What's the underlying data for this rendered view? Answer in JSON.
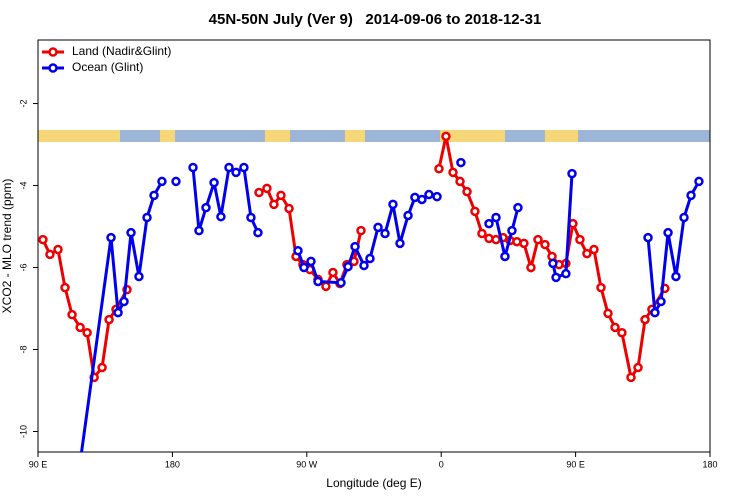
{
  "chart_data": {
    "type": "line",
    "title": "45N-50N July (Ver 9)   2014-09-06 to 2018-12-31",
    "xlabel": "Longitude (deg E)",
    "ylabel": "XCO2 - MLO trend (ppm)",
    "xlim": [
      90,
      540
    ],
    "ylim": [
      -10.5,
      -0.45
    ],
    "xticks": [
      {
        "value": 90,
        "label": "90 E"
      },
      180,
      {
        "value": 270,
        "label": "90 W"
      },
      {
        "value": 360,
        "label": "0"
      },
      {
        "value": 450,
        "label": "90 E"
      },
      {
        "value": 540,
        "label": "180"
      }
    ],
    "yticks": [
      -10,
      -8,
      -6,
      -4,
      -2
    ],
    "legend": "top-left",
    "series": [
      {
        "name": "Land (Nadir&Glint)",
        "color": "#ee0000",
        "x": [
          93.3,
          98.0,
          103.4,
          108.1,
          112.8,
          118.2,
          122.9,
          127.6,
          132.9,
          137.6,
          142.2,
          149.6,
          null,
          238.0,
          243.3,
          248.0,
          252.7,
          258.1,
          262.8,
          267.4,
          272.1,
          277.5,
          282.8,
          287.5,
          292.2,
          296.9,
          301.6,
          306.3,
          null,
          358.5,
          363.2,
          367.9,
          372.6,
          377.3,
          382.6,
          387.3,
          392.0,
          396.7,
          401.4,
          406.1,
          410.7,
          415.4,
          420.1,
          424.8,
          429.5,
          434.2,
          438.9,
          443.5,
          448.2,
          452.9,
          457.6,
          462.3,
          467.0,
          471.7,
          476.4,
          481.0,
          487.1,
          491.8,
          496.5,
          501.1,
          509.8
        ],
        "values": [
          -5.32,
          -5.68,
          -5.56,
          -6.49,
          -7.15,
          -7.46,
          -7.59,
          -8.68,
          -8.44,
          -7.27,
          -7.02,
          -6.54,
          null,
          -4.17,
          -4.07,
          -4.46,
          -4.24,
          -4.56,
          -5.73,
          -5.93,
          -6.05,
          -6.29,
          -6.46,
          -6.12,
          -6.39,
          -5.93,
          -5.85,
          -5.1,
          null,
          -3.59,
          -2.8,
          -3.68,
          -3.9,
          -4.15,
          -4.63,
          -5.17,
          -5.29,
          -5.32,
          -5.27,
          -5.34,
          -5.37,
          -5.41,
          -6.0,
          -5.32,
          -5.44,
          -5.73,
          -5.93,
          -5.9,
          -4.93,
          -5.32,
          -5.66,
          -5.56,
          -6.49,
          -7.12,
          -7.46,
          -7.59,
          -8.68,
          -8.44,
          -7.27,
          -7.02,
          -6.51
        ]
      },
      {
        "name": "Ocean (Glint)",
        "color": "#0000ee",
        "x": [
          115.4,
          138.9,
          143.6,
          147.6,
          152.3,
          157.6,
          163.0,
          167.7,
          173.0,
          null,
          182.4,
          null,
          193.8,
          197.8,
          202.5,
          207.9,
          212.5,
          217.9,
          222.6,
          227.9,
          232.6,
          237.3,
          null,
          264.1,
          268.1,
          272.8,
          277.5,
          292.9,
          297.6,
          302.3,
          308.3,
          312.3,
          317.7,
          322.4,
          327.7,
          332.4,
          337.8,
          342.4,
          347.1,
          351.8,
          357.2,
          null,
          373.2,
          null,
          392.0,
          396.7,
          402.7,
          407.4,
          411.4,
          null,
          434.8,
          436.9,
          443.5,
          447.6,
          null,
          498.5,
          503.1,
          507.2,
          511.9,
          517.2,
          522.6,
          527.3,
          532.6
        ],
        "values": [
          -11.5,
          -5.27,
          -7.1,
          -6.83,
          -5.15,
          -6.22,
          -4.78,
          -4.24,
          -3.9,
          null,
          -3.9,
          null,
          -3.56,
          -5.1,
          -4.54,
          -3.93,
          -4.76,
          -3.56,
          -3.68,
          -3.56,
          -4.78,
          -5.15,
          null,
          -5.59,
          -6.0,
          -5.85,
          -6.34,
          -6.37,
          -5.98,
          -5.49,
          -5.95,
          -5.78,
          -5.02,
          -5.17,
          -4.46,
          -5.41,
          -4.73,
          -4.29,
          -4.34,
          -4.22,
          -4.27,
          null,
          -3.44,
          null,
          -4.93,
          -4.78,
          -5.73,
          -5.1,
          -4.54,
          null,
          -5.9,
          -6.24,
          -6.15,
          -3.71,
          null,
          -5.27,
          -7.1,
          -6.83,
          -5.15,
          -6.22,
          -4.78,
          -4.24,
          -3.9
        ]
      }
    ]
  }
}
